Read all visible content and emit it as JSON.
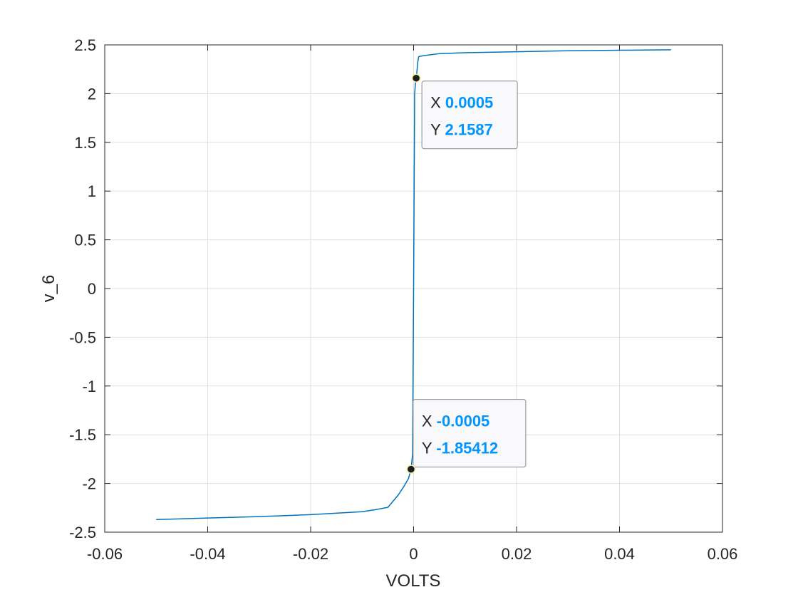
{
  "chart_data": {
    "type": "line",
    "title": "",
    "xlabel": "VOLTS",
    "ylabel": "v_6",
    "xlim": [
      -0.06,
      0.06
    ],
    "ylim": [
      -2.5,
      2.5
    ],
    "grid": true,
    "xticks": [
      -0.06,
      -0.04,
      -0.02,
      0,
      0.02,
      0.04,
      0.06
    ],
    "xtick_labels": [
      "-0.06",
      "-0.04",
      "-0.02",
      "0",
      "0.02",
      "0.04",
      "0.06"
    ],
    "yticks": [
      2.5,
      2,
      1.5,
      1,
      0.5,
      0,
      -0.5,
      -1,
      -1.5,
      -2,
      -2.5
    ],
    "ytick_labels": [
      "2.5",
      "2",
      "1.5",
      "1",
      "0.5",
      "0",
      "-0.5",
      "-1",
      "-1.5",
      "-2",
      "-2.5"
    ],
    "series": [
      {
        "color": "#0072BD",
        "x": [
          -0.05,
          -0.04,
          -0.03,
          -0.02,
          -0.01,
          -0.0075,
          -0.005,
          -0.003,
          -0.002,
          -0.001,
          -0.0005,
          -0.0002,
          0.0,
          0.0002,
          0.0004,
          0.0005,
          0.0006,
          0.0008,
          0.001,
          0.002,
          0.005,
          0.01,
          0.02,
          0.03,
          0.04,
          0.05
        ],
        "y": [
          -2.37,
          -2.355,
          -2.34,
          -2.32,
          -2.29,
          -2.27,
          -2.245,
          -2.12,
          -2.04,
          -1.95,
          -1.854,
          -1.7,
          0.0,
          2.0,
          2.13,
          2.1587,
          2.2,
          2.32,
          2.38,
          2.39,
          2.41,
          2.42,
          2.43,
          2.44,
          2.445,
          2.45
        ]
      }
    ],
    "datatips": [
      {
        "x": 0.0005,
        "y": 2.1587,
        "x_label": "X",
        "y_label": "Y",
        "x_text": "0.0005",
        "y_text": "2.1587"
      },
      {
        "x": -0.0005,
        "y": -1.85412,
        "x_label": "X",
        "y_label": "Y",
        "x_text": "-0.0005",
        "y_text": "-1.85412"
      }
    ],
    "value_color": "#0095FF"
  }
}
